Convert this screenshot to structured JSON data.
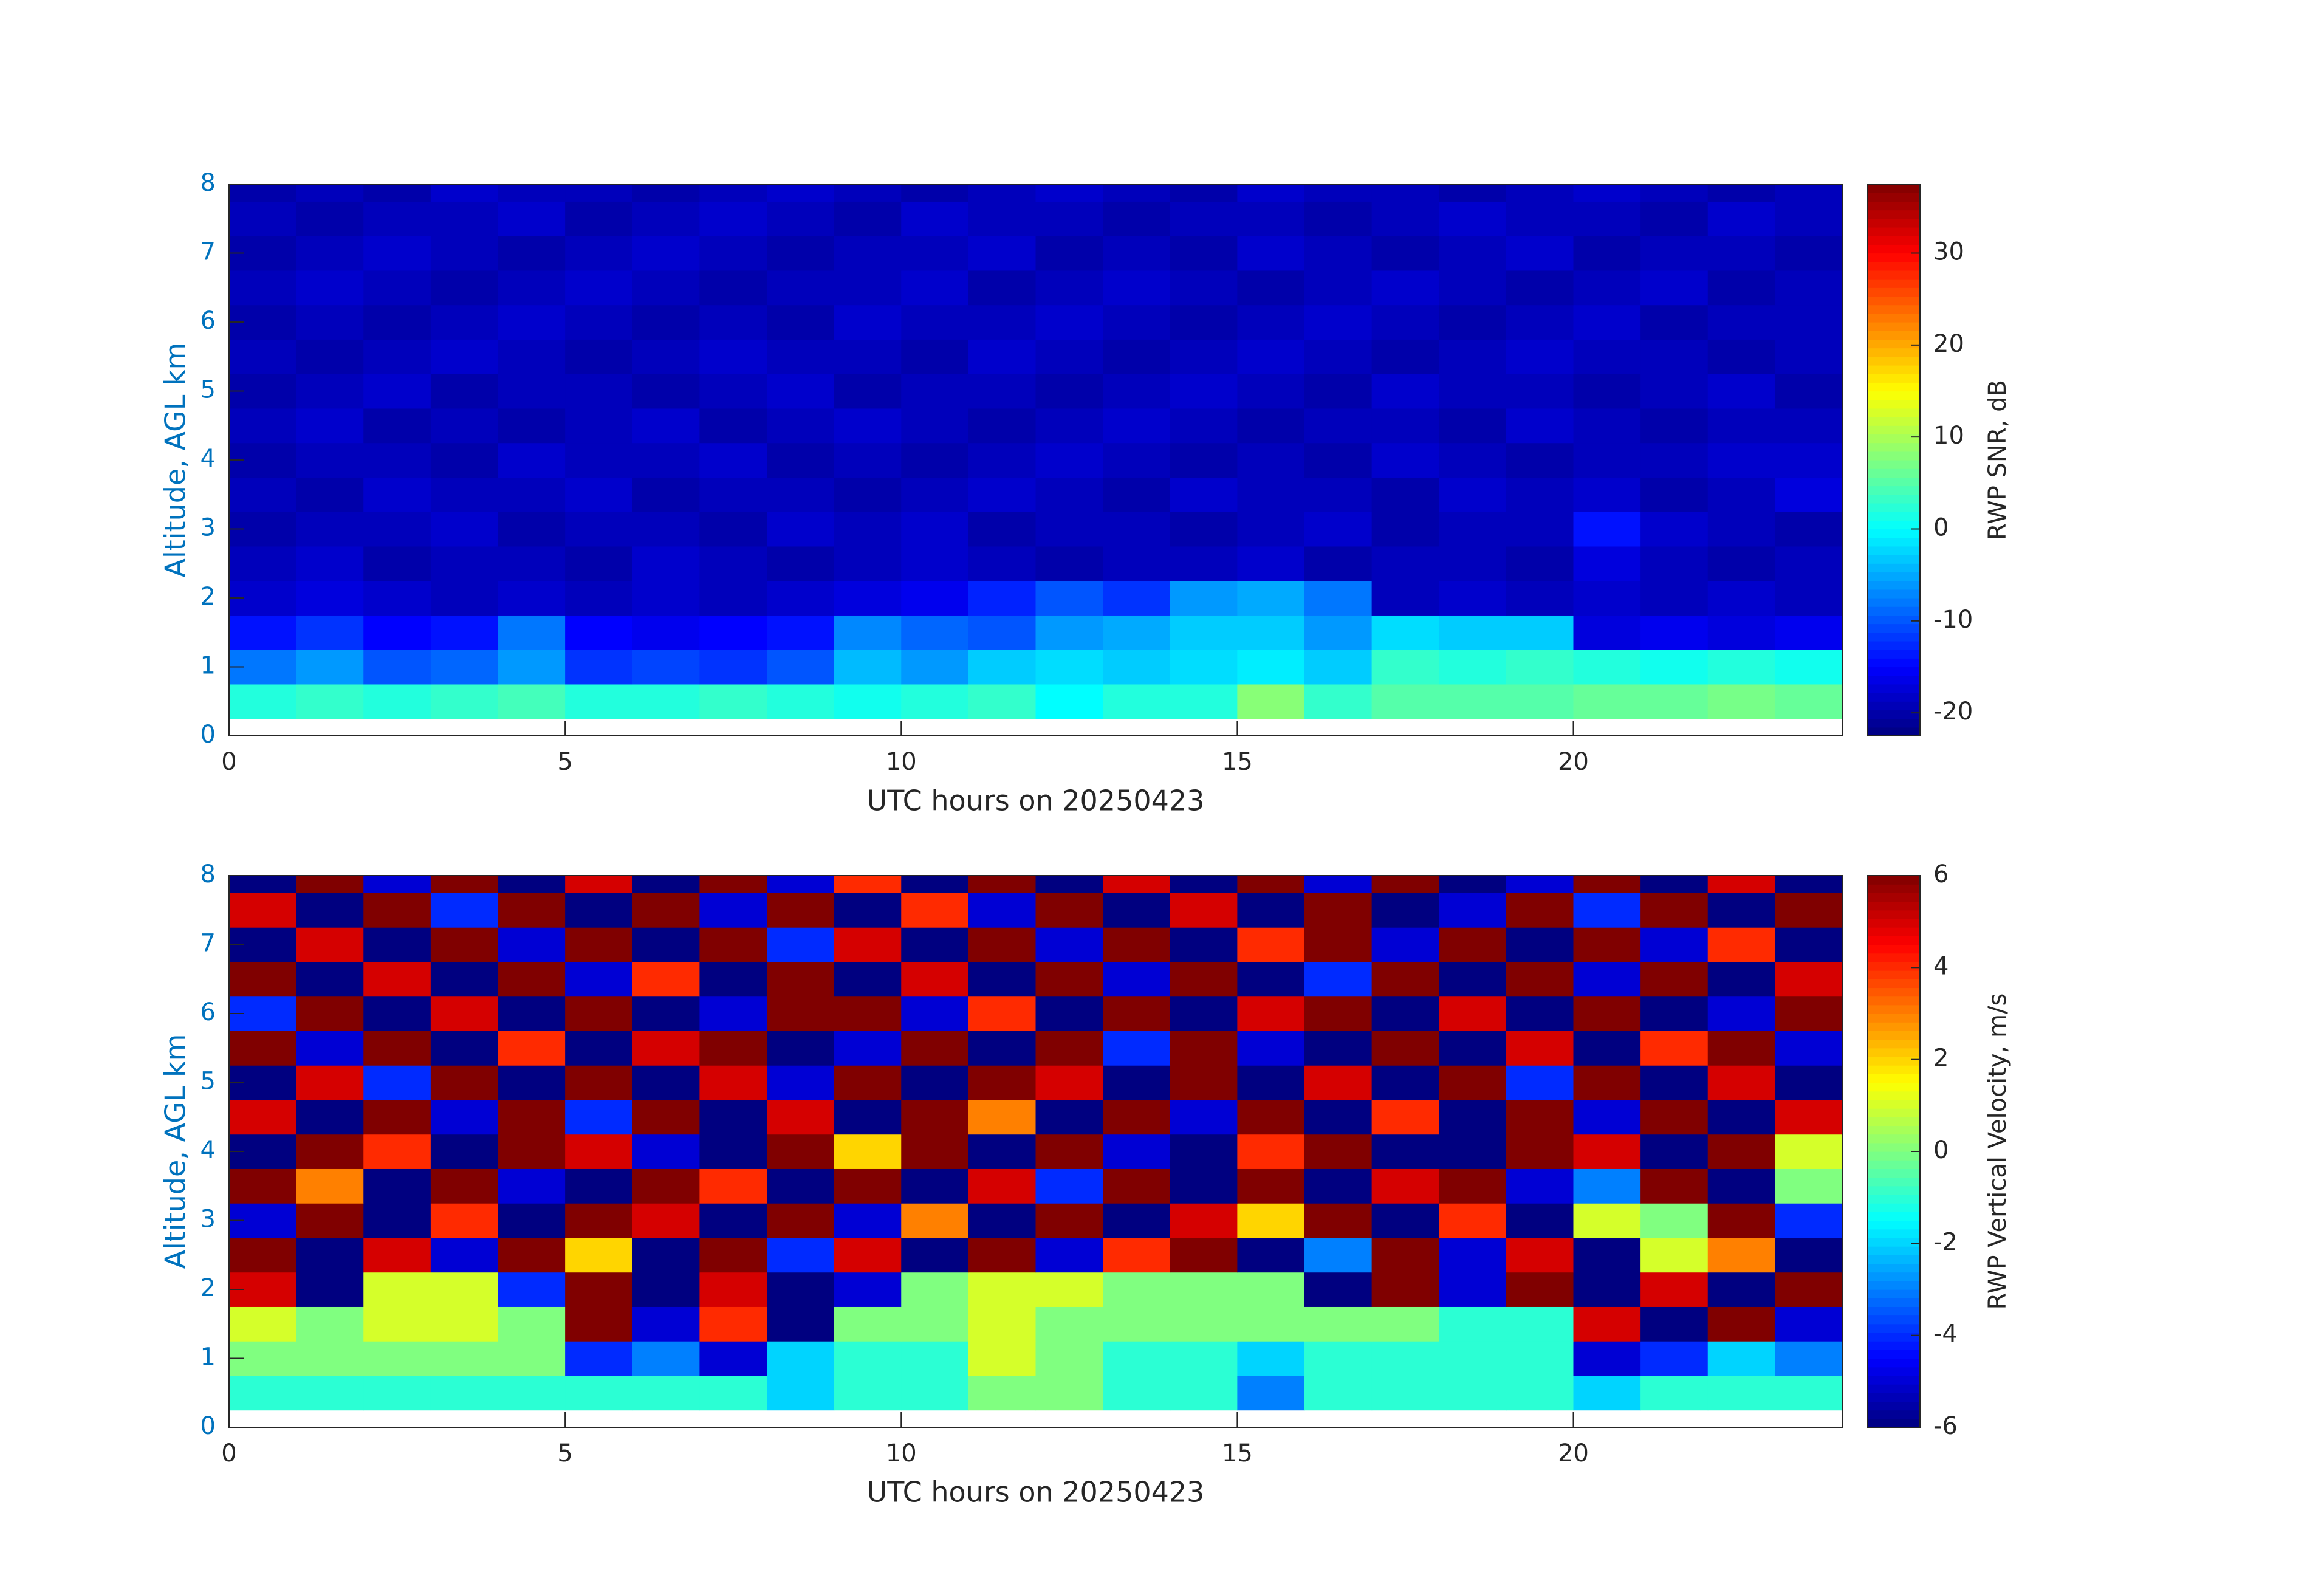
{
  "chart_data": [
    {
      "type": "heatmap",
      "xlabel": "UTC hours on 20250423",
      "ylabel": "Altitude, AGL km",
      "colorbar_label": "RWP SNR, dB",
      "colormap": "jet",
      "x": [
        0,
        1,
        2,
        3,
        4,
        5,
        6,
        7,
        8,
        9,
        10,
        11,
        12,
        13,
        14,
        15,
        16,
        17,
        18,
        19,
        20,
        21,
        22,
        23,
        24
      ],
      "y": [
        0.25,
        0.75,
        1.25,
        1.75,
        2.25,
        2.75,
        3.25,
        3.75,
        4.25,
        4.75,
        5.25,
        5.75,
        6.25,
        6.75,
        7.25,
        7.75,
        8
      ],
      "z": [
        [
          2,
          3,
          2,
          3,
          4,
          2,
          2,
          3,
          2,
          1,
          2,
          3,
          0,
          2,
          2,
          8,
          3,
          5,
          5,
          5,
          6,
          6,
          7,
          6
        ],
        [
          -8,
          -6,
          -10,
          -9,
          -6,
          -12,
          -11,
          -12,
          -10,
          -4,
          -6,
          -3,
          -2,
          -3,
          -2,
          -1,
          -3,
          3,
          2,
          3,
          2,
          1,
          2,
          1
        ],
        [
          -14,
          -12,
          -15,
          -14,
          -8,
          -15,
          -16,
          -15,
          -14,
          -7,
          -9,
          -10,
          -6,
          -5,
          -3,
          -3,
          -6,
          -2,
          -3,
          -3,
          -17,
          -16,
          -17,
          -16
        ],
        [
          -18,
          -17,
          -18,
          -19,
          -18,
          -19,
          -18,
          -19,
          -18,
          -17,
          -16,
          -13,
          -10,
          -12,
          -6,
          -5,
          -8,
          -19,
          -18,
          -19,
          -18,
          -19,
          -18,
          -19
        ],
        [
          -19,
          -18,
          -20,
          -19,
          -19,
          -20,
          -18,
          -19,
          -20,
          -19,
          -18,
          -19,
          -20,
          -19,
          -19,
          -18,
          -20,
          -19,
          -19,
          -20,
          -17,
          -19,
          -20,
          -19
        ],
        [
          -20,
          -19,
          -19,
          -18,
          -20,
          -19,
          -19,
          -20,
          -18,
          -19,
          -18,
          -20,
          -19,
          -19,
          -20,
          -19,
          -18,
          -20,
          -19,
          -19,
          -14,
          -18,
          -19,
          -20
        ],
        [
          -19,
          -20,
          -18,
          -19,
          -19,
          -18,
          -20,
          -19,
          -19,
          -20,
          -19,
          -18,
          -19,
          -20,
          -18,
          -19,
          -19,
          -20,
          -18,
          -19,
          -18,
          -20,
          -19,
          -17
        ],
        [
          -20,
          -19,
          -19,
          -20,
          -18,
          -19,
          -19,
          -18,
          -20,
          -19,
          -20,
          -19,
          -18,
          -19,
          -20,
          -19,
          -20,
          -18,
          -19,
          -20,
          -19,
          -19,
          -18,
          -18
        ],
        [
          -19,
          -18,
          -20,
          -19,
          -20,
          -19,
          -18,
          -20,
          -19,
          -18,
          -19,
          -20,
          -19,
          -18,
          -19,
          -20,
          -19,
          -19,
          -20,
          -18,
          -19,
          -20,
          -19,
          -19
        ],
        [
          -20,
          -19,
          -18,
          -20,
          -19,
          -19,
          -20,
          -19,
          -18,
          -20,
          -19,
          -19,
          -20,
          -19,
          -18,
          -19,
          -20,
          -18,
          -19,
          -19,
          -20,
          -19,
          -18,
          -20
        ],
        [
          -19,
          -20,
          -19,
          -18,
          -19,
          -20,
          -19,
          -18,
          -19,
          -19,
          -20,
          -18,
          -19,
          -20,
          -19,
          -18,
          -19,
          -20,
          -19,
          -18,
          -19,
          -19,
          -20,
          -19
        ],
        [
          -20,
          -19,
          -20,
          -19,
          -18,
          -19,
          -20,
          -19,
          -20,
          -18,
          -19,
          -19,
          -18,
          -19,
          -20,
          -19,
          -18,
          -19,
          -20,
          -19,
          -18,
          -20,
          -19,
          -19
        ],
        [
          -19,
          -18,
          -19,
          -20,
          -19,
          -18,
          -19,
          -20,
          -19,
          -19,
          -18,
          -20,
          -19,
          -18,
          -19,
          -20,
          -19,
          -18,
          -19,
          -20,
          -19,
          -18,
          -20,
          -19
        ],
        [
          -20,
          -19,
          -18,
          -19,
          -20,
          -19,
          -18,
          -19,
          -20,
          -19,
          -19,
          -18,
          -20,
          -19,
          -20,
          -18,
          -19,
          -20,
          -19,
          -18,
          -20,
          -19,
          -19,
          -20
        ],
        [
          -19,
          -20,
          -19,
          -19,
          -18,
          -20,
          -19,
          -18,
          -19,
          -20,
          -18,
          -19,
          -19,
          -20,
          -19,
          -19,
          -20,
          -19,
          -18,
          -19,
          -19,
          -20,
          -18,
          -19
        ],
        [
          -20,
          -19,
          -20,
          -18,
          -19,
          -19,
          -20,
          -19,
          -18,
          -19,
          -20,
          -19,
          -18,
          -19,
          -20,
          -18,
          -19,
          -19,
          -20,
          -19,
          -18,
          -19,
          -20,
          -19
        ]
      ],
      "xlim": [
        0,
        24
      ],
      "ylim": [
        0,
        8
      ],
      "xticks": [
        0,
        5,
        10,
        15,
        20
      ],
      "yticks": [
        0,
        1,
        2,
        3,
        4,
        5,
        6,
        7,
        8
      ],
      "clim": [
        -22.5,
        37.5
      ],
      "cticks": [
        -20,
        -10,
        0,
        10,
        20,
        30
      ]
    },
    {
      "type": "heatmap",
      "xlabel": "UTC hours on 20250423",
      "ylabel": "Altitude, AGL km",
      "colorbar_label": "RWP Vertical Velocity, m/s",
      "colormap": "jet",
      "x": [
        0,
        1,
        2,
        3,
        4,
        5,
        6,
        7,
        8,
        9,
        10,
        11,
        12,
        13,
        14,
        15,
        16,
        17,
        18,
        19,
        20,
        21,
        22,
        23,
        24
      ],
      "y": [
        0.25,
        0.75,
        1.25,
        1.75,
        2.25,
        2.75,
        3.25,
        3.75,
        4.25,
        4.75,
        5.25,
        5.75,
        6.25,
        6.75,
        7.25,
        7.75,
        8
      ],
      "z": [
        [
          -1,
          -1,
          -1,
          -1,
          -1,
          -1,
          -1,
          -1,
          -2,
          -1,
          -1,
          0,
          0,
          -1,
          -1,
          -3,
          -1,
          -1,
          -1,
          -1,
          -2,
          -1,
          -1,
          -1
        ],
        [
          0,
          0,
          0,
          0,
          0,
          -4,
          -3,
          -5,
          -2,
          -1,
          -1,
          1,
          0,
          -1,
          -1,
          -2,
          -1,
          -1,
          -1,
          -1,
          -5,
          -4,
          -2,
          -3
        ],
        [
          1,
          0,
          1,
          1,
          0,
          6,
          -5,
          4,
          -6,
          0,
          0,
          1,
          0,
          0,
          0,
          0,
          0,
          0,
          -1,
          -1,
          5,
          -6,
          6,
          -5
        ],
        [
          5,
          -6,
          1,
          1,
          -4,
          6,
          -6,
          5,
          -6,
          -5,
          0,
          1,
          1,
          0,
          0,
          0,
          -6,
          6,
          -5,
          6,
          -6,
          5,
          -6,
          6
        ],
        [
          6,
          -6,
          5,
          -5,
          6,
          2,
          -6,
          6,
          -4,
          5,
          -6,
          6,
          -5,
          4,
          6,
          -6,
          -3,
          6,
          -5,
          5,
          -6,
          1,
          3,
          -6
        ],
        [
          -5,
          6,
          -6,
          4,
          -6,
          6,
          5,
          -6,
          6,
          -5,
          3,
          -6,
          6,
          -6,
          5,
          2,
          6,
          -6,
          4,
          -6,
          1,
          0,
          6,
          -4
        ],
        [
          6,
          3,
          -6,
          6,
          -5,
          -6,
          6,
          4,
          -6,
          6,
          -6,
          5,
          -4,
          6,
          -6,
          6,
          -6,
          5,
          6,
          -5,
          -3,
          6,
          -6,
          0
        ],
        [
          -6,
          6,
          4,
          -6,
          6,
          5,
          -5,
          -6,
          6,
          2,
          6,
          -6,
          6,
          -5,
          -6,
          4,
          6,
          -6,
          -6,
          6,
          5,
          -6,
          6,
          1
        ],
        [
          5,
          -6,
          6,
          -5,
          6,
          -4,
          6,
          -6,
          5,
          -6,
          6,
          3,
          -6,
          6,
          -5,
          6,
          -6,
          4,
          -6,
          6,
          -5,
          6,
          -6,
          5
        ],
        [
          -6,
          5,
          -4,
          6,
          -6,
          6,
          -6,
          5,
          -5,
          6,
          -6,
          6,
          5,
          -6,
          6,
          -6,
          5,
          -6,
          6,
          -4,
          6,
          -6,
          5,
          -6
        ],
        [
          6,
          -5,
          6,
          -6,
          4,
          -6,
          5,
          6,
          -6,
          -5,
          6,
          -6,
          6,
          -4,
          6,
          -5,
          -6,
          6,
          -6,
          5,
          -6,
          4,
          6,
          -5
        ],
        [
          -4,
          6,
          -6,
          5,
          -6,
          6,
          -6,
          -5,
          6,
          6,
          -5,
          4,
          -6,
          6,
          -6,
          5,
          6,
          -6,
          5,
          -6,
          6,
          -6,
          -5,
          6
        ],
        [
          6,
          -6,
          5,
          -6,
          6,
          -5,
          4,
          -6,
          6,
          -6,
          5,
          -6,
          6,
          -5,
          6,
          -6,
          -4,
          6,
          -6,
          6,
          -5,
          6,
          -6,
          5
        ],
        [
          -6,
          5,
          -6,
          6,
          -5,
          6,
          -6,
          6,
          -4,
          5,
          -6,
          6,
          -5,
          6,
          -6,
          4,
          6,
          -5,
          6,
          -6,
          6,
          -5,
          4,
          -6
        ],
        [
          5,
          -6,
          6,
          -4,
          6,
          -6,
          6,
          -5,
          6,
          -6,
          4,
          -5,
          6,
          -6,
          5,
          -6,
          6,
          -6,
          -5,
          6,
          -4,
          6,
          -6,
          6
        ],
        [
          -6,
          6,
          -5,
          6,
          -6,
          5,
          -6,
          6,
          -5,
          4,
          -6,
          6,
          -6,
          5,
          -6,
          6,
          -5,
          6,
          -6,
          -5,
          6,
          -6,
          5,
          -6
        ]
      ],
      "xlim": [
        0,
        24
      ],
      "ylim": [
        0,
        8
      ],
      "xticks": [
        0,
        5,
        10,
        15,
        20
      ],
      "yticks": [
        0,
        1,
        2,
        3,
        4,
        5,
        6,
        7,
        8
      ],
      "clim": [
        -6,
        6
      ],
      "cticks": [
        -6,
        -4,
        -2,
        0,
        2,
        4,
        6
      ]
    }
  ]
}
